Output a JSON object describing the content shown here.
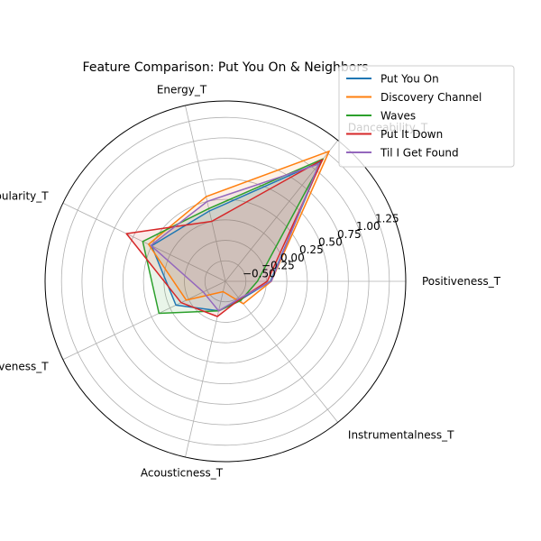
{
  "chart_data": {
    "type": "radar",
    "title": "Feature Comparison: Put You On & Neighbors",
    "axes": [
      "Positiveness_T",
      "Danceability_T",
      "Energy_T",
      "Popularity_T",
      "Liveness_T",
      "Acousticness_T",
      "Instrumentalness_T"
    ],
    "radial_ticks": [
      -0.5,
      -0.25,
      0.0,
      0.25,
      0.5,
      0.75,
      1.0,
      1.25
    ],
    "radial_tick_labels": [
      "−0.50",
      "−0.25",
      "0.00",
      "0.25",
      "0.50",
      "0.75",
      "1.00",
      "1.25"
    ],
    "rlim": [
      -0.75,
      1.45
    ],
    "grid": true,
    "legend_position": "top-right",
    "series": [
      {
        "name": "Put You On",
        "color": "#1f77b4",
        "values": [
          -0.2,
          1.12,
          0.13,
          0.25,
          -0.08,
          -0.38,
          -0.46
        ]
      },
      {
        "name": "Discovery Channel",
        "color": "#ff7f0e",
        "values": [
          -0.19,
          1.28,
          0.31,
          0.29,
          -0.22,
          -0.62,
          -0.4
        ]
      },
      {
        "name": "Waves",
        "color": "#2ca02c",
        "values": [
          -0.36,
          1.16,
          0.16,
          0.37,
          0.15,
          -0.38,
          -0.45
        ]
      },
      {
        "name": "Put It Down",
        "color": "#d62728",
        "values": [
          -0.24,
          1.15,
          0.0,
          0.59,
          -0.15,
          -0.31,
          -0.47
        ]
      },
      {
        "name": "Til I Get Found",
        "color": "#9467bd",
        "values": [
          -0.19,
          1.08,
          0.25,
          0.26,
          -0.45,
          -0.38,
          -0.48
        ]
      }
    ]
  }
}
